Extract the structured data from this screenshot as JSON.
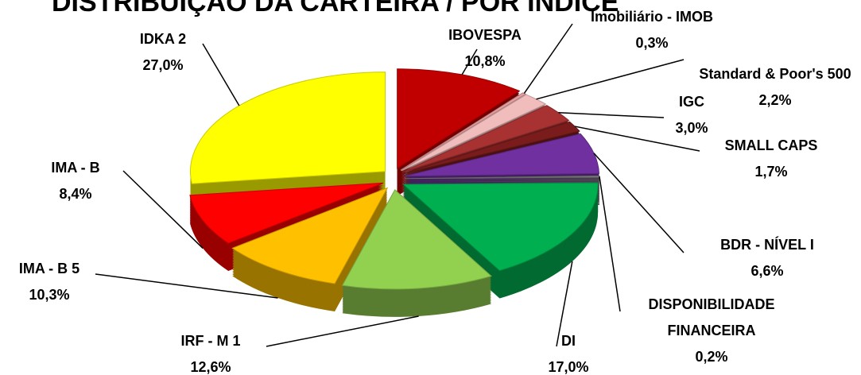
{
  "chart_data": {
    "type": "pie",
    "title": "DISTRIBUIÇÃO DA CARTEIRA / POR ÍNDICE",
    "categories": [
      "IBOVESPA",
      "Imobiliário - IMOB",
      "Standard & Poor's 500",
      "IGC",
      "SMALL CAPS",
      "BDR - NÍVEL I",
      "DISPONIBILIDADE FINANCEIRA",
      "DI",
      "IRF - M 1",
      "IMA - B 5",
      "IMA - B",
      "IDKA 2"
    ],
    "values": [
      10.8,
      0.3,
      2.2,
      3.0,
      1.7,
      6.6,
      0.2,
      17.0,
      12.6,
      10.3,
      8.4,
      27.0
    ],
    "value_labels": [
      "10,8%",
      "0,3%",
      "2,2%",
      "3,0%",
      "1,7%",
      "6,6%",
      "0,2%",
      "17,0%",
      "12,6%",
      "10,3%",
      "8,4%",
      "27,0%"
    ],
    "colors": [
      "#c00000",
      "#e6a0a0",
      "#f0bcbc",
      "#a83232",
      "#7a1c1c",
      "#7030a0",
      "#7f7f7f",
      "#00b050",
      "#92d050",
      "#ffc000",
      "#ff0000",
      "#ffff00"
    ]
  }
}
